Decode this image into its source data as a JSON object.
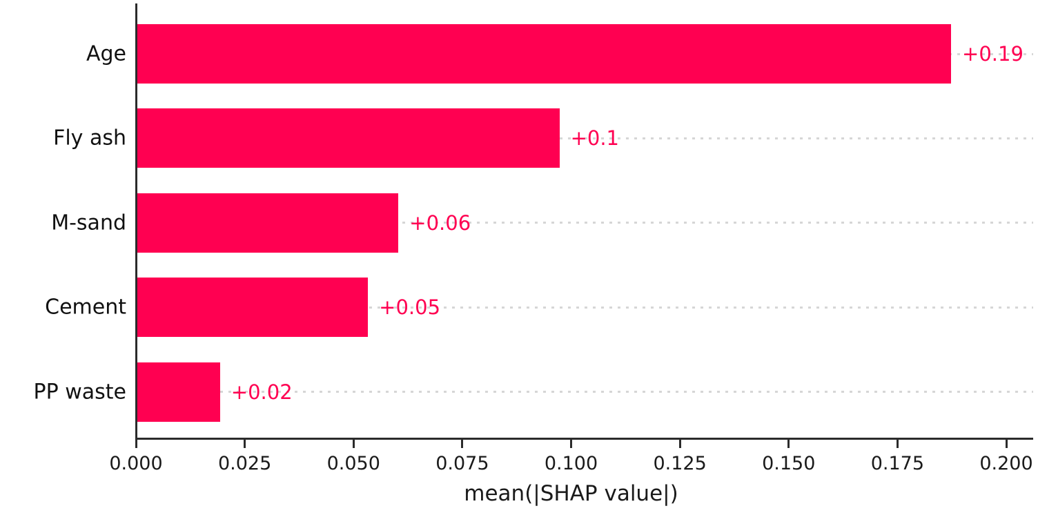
{
  "chart_data": {
    "type": "bar",
    "orientation": "horizontal",
    "title": "",
    "xlabel": "mean(|SHAP value|)",
    "ylabel": "",
    "categories": [
      "Age",
      "Fly ash",
      "M-sand",
      "Cement",
      "PP waste"
    ],
    "values": [
      0.187,
      0.097,
      0.06,
      0.053,
      0.019
    ],
    "value_labels": [
      "+0.19",
      "+0.1",
      "+0.06",
      "+0.05",
      "+0.02"
    ],
    "x_tick_values": [
      0.0,
      0.025,
      0.05,
      0.075,
      0.1,
      0.125,
      0.15,
      0.175,
      0.2
    ],
    "x_tick_labels": [
      "0.000",
      "0.025",
      "0.050",
      "0.075",
      "0.100",
      "0.125",
      "0.150",
      "0.175",
      "0.200"
    ],
    "xlim": [
      0,
      0.206
    ],
    "bar_color": "#ff0051",
    "value_label_color": "#ff0051",
    "grid": "horizontal dotted",
    "gridline_color": "#d6d6d6",
    "legend": "none"
  }
}
